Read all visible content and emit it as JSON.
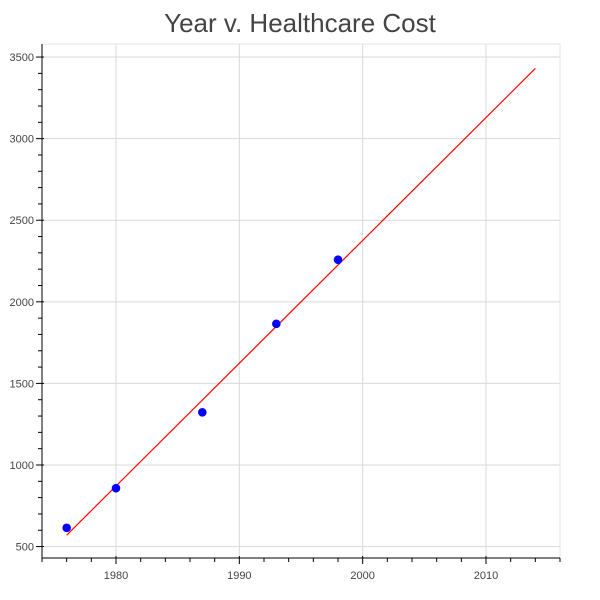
{
  "colors": {
    "points": "#0000ff",
    "fit_line": "#ff0000",
    "grid": "#d9d9d9",
    "axis": "#000000",
    "tick_text": "#444444",
    "title": "#444444"
  },
  "chart_data": {
    "type": "scatter",
    "title": "Year v. Healthcare Cost",
    "xlabel": "",
    "ylabel": "",
    "xlim": [
      1974,
      2016
    ],
    "ylim": [
      430,
      3580
    ],
    "x_ticks": [
      1980,
      1990,
      2000,
      2010
    ],
    "y_ticks": [
      500,
      1000,
      1500,
      2000,
      2500,
      3000,
      3500
    ],
    "x_tick_labels": [
      "1980",
      "1990",
      "2000",
      "2010"
    ],
    "y_tick_labels": [
      "500",
      "1000",
      "1500",
      "2000",
      "2500",
      "3000",
      "3500"
    ],
    "grid": true,
    "legend": "none",
    "series": [
      {
        "type": "scatter",
        "marker": "circle",
        "color": "#0000ff",
        "points": [
          {
            "x": 1976,
            "y": 615
          },
          {
            "x": 1980,
            "y": 858
          },
          {
            "x": 1987,
            "y": 1323
          },
          {
            "x": 1993,
            "y": 1865
          },
          {
            "x": 1998,
            "y": 2258
          }
        ]
      },
      {
        "type": "line",
        "color": "#ff0000",
        "points": [
          {
            "x": 1976,
            "y": 570
          },
          {
            "x": 2014,
            "y": 3430
          }
        ]
      }
    ]
  }
}
